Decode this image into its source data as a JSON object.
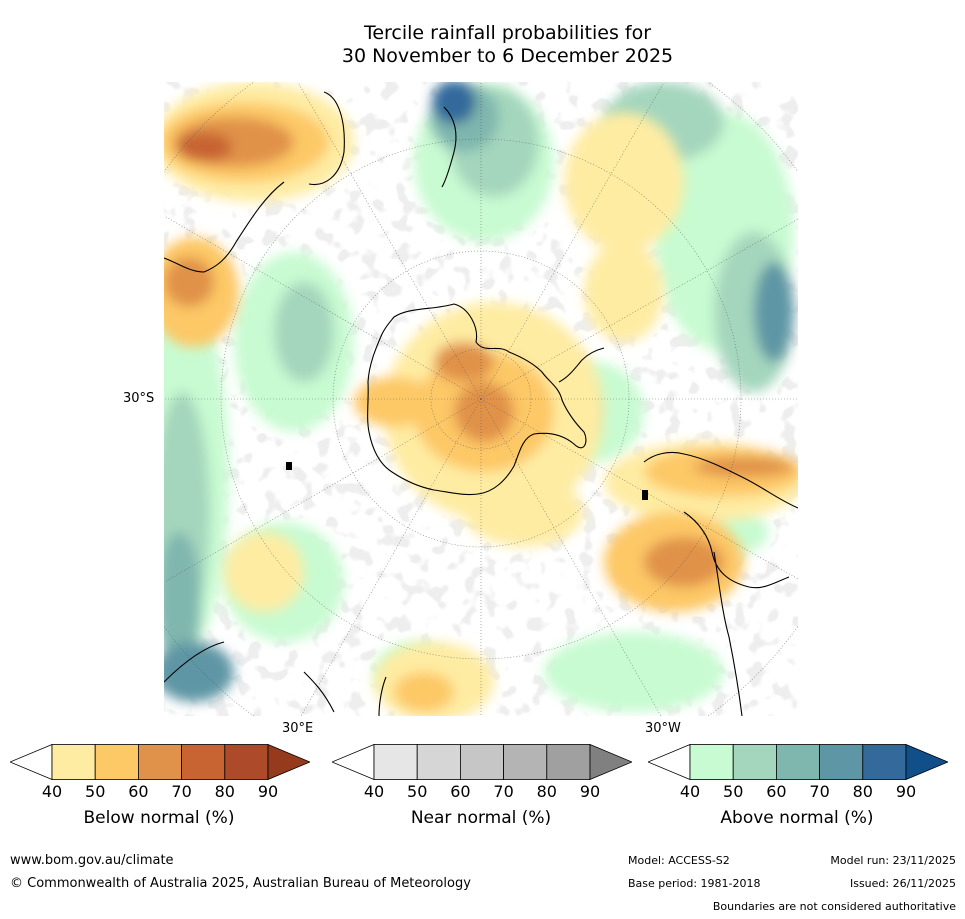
{
  "title": {
    "line1": "Tercile rainfall probabilities for",
    "line2": "30 November to 6 December 2025"
  },
  "map": {
    "projection": "south-polar stereographic",
    "graticule_labels": {
      "lat": "30°S",
      "lon_east": "30°E",
      "lon_west": "30°W"
    }
  },
  "colorbars": [
    {
      "id": "below",
      "title": "Below normal (%)",
      "ticks": [
        "40",
        "50",
        "60",
        "70",
        "80",
        "90"
      ],
      "colors": [
        "#ffffff",
        "#feeca3",
        "#fdc866",
        "#e0924a",
        "#c76431",
        "#ad4a29",
        "#963a1e"
      ]
    },
    {
      "id": "near",
      "title": "Near normal (%)",
      "ticks": [
        "40",
        "50",
        "60",
        "70",
        "80",
        "90"
      ],
      "colors": [
        "#ffffff",
        "#e6e6e6",
        "#d6d6d6",
        "#c6c6c6",
        "#b4b4b4",
        "#a0a0a0",
        "#808080"
      ]
    },
    {
      "id": "above",
      "title": "Above normal (%)",
      "ticks": [
        "40",
        "50",
        "60",
        "70",
        "80",
        "90"
      ],
      "colors": [
        "#ffffff",
        "#c8fbd1",
        "#a4d6bd",
        "#7fb6ae",
        "#5e96a5",
        "#336a9b",
        "#114f8b"
      ]
    }
  ],
  "footer": {
    "url": "www.bom.gov.au/climate",
    "copyright": "© Commonwealth of Australia 2025, Australian Bureau of Meteorology",
    "model": "Model: ACCESS-S2",
    "model_run": "Model run: 23/11/2025",
    "base_period": "Base period: 1981-2018",
    "issued": "Issued: 26/11/2025",
    "disclaimer": "Boundaries are not considered authoritative"
  }
}
